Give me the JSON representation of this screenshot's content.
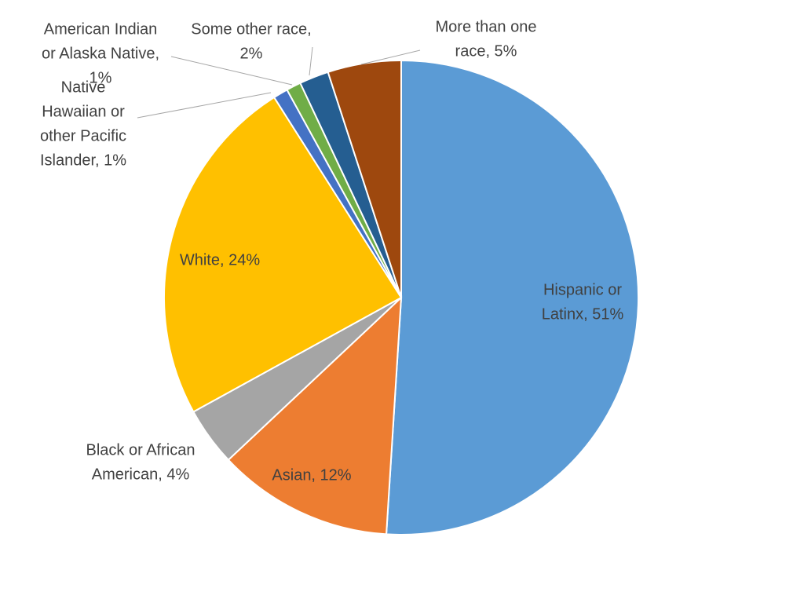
{
  "chart_data": {
    "type": "pie",
    "title": "",
    "slices": [
      {
        "label": "Hispanic or Latinx",
        "value": 51,
        "display": [
          "Hispanic or",
          "Latinx, 51%"
        ],
        "color": "#5b9bd5"
      },
      {
        "label": "Asian",
        "value": 12,
        "display": [
          "Asian, 12%"
        ],
        "color": "#ed7d31"
      },
      {
        "label": "Black or African American",
        "value": 4,
        "display": [
          "Black or African",
          "American, 4%"
        ],
        "color": "#a5a5a5"
      },
      {
        "label": "White",
        "value": 24,
        "display": [
          "White, 24%"
        ],
        "color": "#ffc000"
      },
      {
        "label": "Native Hawaiian or other Pacific Islander",
        "value": 1,
        "display": [
          "Native",
          "Hawaiian or",
          "other Pacific",
          "Islander, 1%"
        ],
        "color": "#4472c4"
      },
      {
        "label": "American Indian or Alaska Native",
        "value": 1,
        "display": [
          "American Indian",
          "or Alaska Native,",
          "1%"
        ],
        "color": "#70ad47"
      },
      {
        "label": "Some other race",
        "value": 2,
        "display": [
          "Some other race,",
          "2%"
        ],
        "color": "#255e91"
      },
      {
        "label": "More than one race",
        "value": 5,
        "display": [
          "More than one",
          "race, 5%"
        ],
        "color": "#9e480e"
      }
    ]
  }
}
